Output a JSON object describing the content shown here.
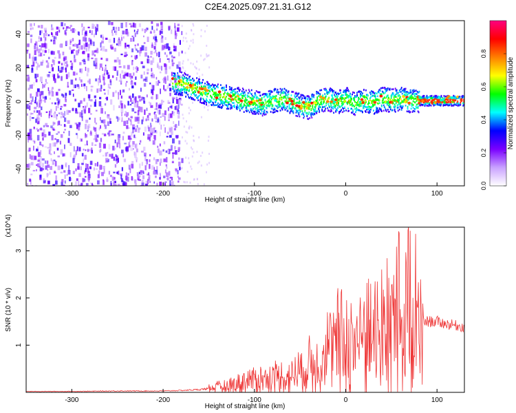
{
  "title": "C2E4.2025.097.21.31.G12",
  "chart_data": [
    {
      "type": "heatmap",
      "xlabel": "Height of straight line (km)",
      "ylabel": "Frequency (Hz)",
      "xlim": [
        -350,
        130
      ],
      "ylim": [
        -50,
        48
      ],
      "x_ticks": [
        -300,
        -200,
        -100,
        0,
        100
      ],
      "y_ticks": [
        -40,
        -20,
        0,
        20,
        40
      ],
      "colorbar": {
        "label": "Normalized spectral amplitude",
        "range": [
          0,
          1
        ],
        "ticks": [
          "0.0",
          "0.2",
          "0.4",
          "0.6",
          "0.8"
        ],
        "colors": [
          "#ffffff",
          "#c9a2ff",
          "#7a00ff",
          "#0000ff",
          "#00ffff",
          "#00ff00",
          "#ffff00",
          "#ff8000",
          "#ff0000",
          "#ff0080"
        ]
      },
      "noise_region_x": [
        -350,
        -180
      ],
      "signal_track": {
        "x": [
          -190,
          -180,
          -170,
          -160,
          -150,
          -140,
          -130,
          -120,
          -110,
          -100,
          -90,
          -80,
          -70,
          -60,
          -50,
          -40,
          -30,
          -20,
          -10,
          0,
          10,
          20,
          30,
          40,
          50,
          60,
          70,
          80,
          90,
          100,
          110,
          120,
          130
        ],
        "y": [
          12,
          11,
          9,
          7,
          5,
          4,
          3,
          2,
          1,
          0,
          -1,
          1,
          2,
          0,
          -2,
          -3,
          1,
          2,
          0,
          2,
          -1,
          1,
          0,
          2,
          1,
          2,
          1,
          1,
          1,
          1,
          1,
          1,
          1
        ]
      }
    },
    {
      "type": "line",
      "xlabel": "Height of straight line (km)",
      "ylabel": "SNR (10 * v/v)",
      "y_multiplier": "(x10^4)",
      "xlim": [
        -350,
        130
      ],
      "ylim": [
        0,
        3.5
      ],
      "x_ticks": [
        -300,
        -200,
        -100,
        0,
        100
      ],
      "y_ticks": [
        1,
        2,
        3
      ],
      "series": [
        {
          "color": "#ee3333",
          "x": [
            -350,
            -300,
            -250,
            -200,
            -180,
            -160,
            -140,
            -120,
            -100,
            -80,
            -60,
            -40,
            -20,
            0,
            20,
            40,
            60,
            70,
            80,
            85,
            90,
            100,
            110,
            120,
            130
          ],
          "y": [
            0.02,
            0.02,
            0.03,
            0.03,
            0.04,
            0.06,
            0.1,
            0.18,
            0.28,
            0.3,
            0.35,
            0.55,
            0.9,
            1.05,
            1.2,
            1.35,
            1.5,
            1.5,
            1.3,
            1.5,
            1.5,
            1.5,
            1.45,
            1.42,
            1.38
          ]
        }
      ]
    }
  ]
}
